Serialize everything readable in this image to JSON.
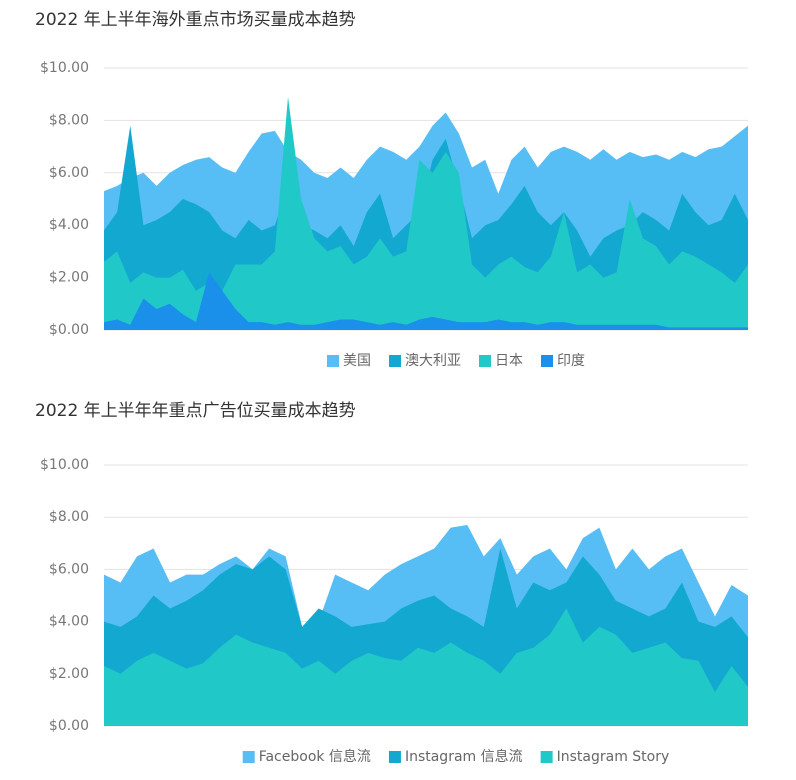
{
  "chart_data": [
    {
      "type": "area",
      "title": "2022 年上半年海外重点市场买量成本趋势",
      "ylim": [
        0,
        10
      ],
      "yticks": [
        {
          "value": 0,
          "label": "$0.00"
        },
        {
          "value": 2,
          "label": "$2.00"
        },
        {
          "value": 4,
          "label": "$4.00"
        },
        {
          "value": 6,
          "label": "$6.00"
        },
        {
          "value": 8,
          "label": "$8.00"
        },
        {
          "value": 10,
          "label": "$10.00"
        }
      ],
      "grid": true,
      "legend": "bottom",
      "series": [
        {
          "name": "美国",
          "color": "#57bef5",
          "values": [
            5.3,
            5.5,
            5.8,
            6.0,
            5.5,
            6.0,
            6.3,
            6.5,
            6.6,
            6.2,
            6.0,
            6.8,
            7.5,
            7.6,
            6.8,
            6.5,
            6.0,
            5.8,
            6.2,
            5.8,
            6.5,
            7.0,
            6.8,
            6.5,
            7.0,
            7.8,
            8.3,
            7.5,
            6.2,
            6.5,
            5.2,
            6.5,
            7.0,
            6.2,
            6.8,
            7.0,
            6.8,
            6.5,
            6.9,
            6.5,
            6.8,
            6.6,
            6.7,
            6.5,
            6.8,
            6.6,
            6.9,
            7.0,
            7.4,
            7.8
          ]
        },
        {
          "name": "澳大利亚",
          "color": "#12a8cf",
          "values": [
            3.8,
            4.5,
            7.8,
            4.0,
            4.2,
            4.5,
            5.0,
            4.8,
            4.5,
            3.8,
            3.5,
            4.2,
            3.8,
            4.0,
            5.5,
            4.0,
            3.8,
            3.5,
            4.0,
            3.2,
            4.5,
            5.2,
            3.5,
            4.0,
            4.5,
            6.5,
            7.3,
            5.5,
            3.5,
            4.0,
            4.2,
            4.8,
            5.5,
            4.5,
            4.0,
            4.5,
            3.8,
            2.8,
            3.5,
            3.8,
            4.0,
            4.5,
            4.2,
            3.8,
            5.2,
            4.5,
            4.0,
            4.2,
            5.2,
            4.2
          ]
        },
        {
          "name": "日本",
          "color": "#20c9c8",
          "values": [
            2.6,
            3.0,
            1.8,
            2.2,
            2.0,
            2.0,
            2.3,
            1.5,
            1.8,
            1.5,
            2.5,
            2.5,
            2.5,
            3.0,
            8.9,
            5.0,
            3.5,
            3.0,
            3.2,
            2.5,
            2.8,
            3.5,
            2.8,
            3.0,
            6.5,
            6.0,
            6.8,
            6.0,
            2.5,
            2.0,
            2.5,
            2.8,
            2.4,
            2.2,
            2.8,
            4.5,
            2.2,
            2.5,
            2.0,
            2.2,
            5.0,
            3.5,
            3.2,
            2.5,
            3.0,
            2.8,
            2.5,
            2.2,
            1.8,
            2.5
          ]
        },
        {
          "name": "印度",
          "color": "#1a90ea",
          "values": [
            0.3,
            0.4,
            0.2,
            1.2,
            0.8,
            1.0,
            0.6,
            0.3,
            2.2,
            1.5,
            0.8,
            0.3,
            0.3,
            0.2,
            0.3,
            0.2,
            0.2,
            0.3,
            0.4,
            0.4,
            0.3,
            0.2,
            0.3,
            0.2,
            0.4,
            0.5,
            0.4,
            0.3,
            0.3,
            0.3,
            0.4,
            0.3,
            0.3,
            0.2,
            0.3,
            0.3,
            0.2,
            0.2,
            0.2,
            0.2,
            0.2,
            0.2,
            0.2,
            0.1,
            0.1,
            0.1,
            0.1,
            0.1,
            0.1,
            0.1
          ]
        }
      ]
    },
    {
      "type": "area",
      "title": "2022 年上半年年重点广告位买量成本趋势",
      "ylim": [
        0,
        10
      ],
      "yticks": [
        {
          "value": 0,
          "label": "$0.00"
        },
        {
          "value": 2,
          "label": "$2.00"
        },
        {
          "value": 4,
          "label": "$4.00"
        },
        {
          "value": 6,
          "label": "$6.00"
        },
        {
          "value": 8,
          "label": "$8.00"
        },
        {
          "value": 10,
          "label": "$10.00"
        }
      ],
      "grid": true,
      "legend": "bottom",
      "series": [
        {
          "name": "Facebook 信息流",
          "color": "#57bef5",
          "values": [
            5.8,
            5.5,
            6.5,
            6.8,
            5.5,
            5.8,
            5.8,
            6.2,
            6.5,
            6.0,
            6.8,
            6.5,
            3.8,
            4.0,
            5.8,
            5.5,
            5.2,
            5.8,
            6.2,
            6.5,
            6.8,
            7.6,
            7.7,
            6.5,
            7.2,
            5.8,
            6.5,
            6.8,
            6.0,
            7.2,
            7.6,
            6.0,
            6.8,
            6.0,
            6.5,
            6.8,
            5.5,
            4.2,
            5.4,
            5.0
          ]
        },
        {
          "name": "Instagram 信息流",
          "color": "#12a8cf",
          "values": [
            4.0,
            3.8,
            4.2,
            5.0,
            4.5,
            4.8,
            5.2,
            5.8,
            6.2,
            6.0,
            6.5,
            6.0,
            3.8,
            4.5,
            4.2,
            3.8,
            3.9,
            4.0,
            4.5,
            4.8,
            5.0,
            4.5,
            4.2,
            3.8,
            6.8,
            4.5,
            5.5,
            5.2,
            5.5,
            6.5,
            5.8,
            4.8,
            4.5,
            4.2,
            4.5,
            5.5,
            4.0,
            3.8,
            4.2,
            3.4
          ]
        },
        {
          "name": "Instagram Story",
          "color": "#20c9c8",
          "values": [
            2.3,
            2.0,
            2.5,
            2.8,
            2.5,
            2.2,
            2.4,
            3.0,
            3.5,
            3.2,
            3.0,
            2.8,
            2.2,
            2.5,
            2.0,
            2.5,
            2.8,
            2.6,
            2.5,
            3.0,
            2.8,
            3.2,
            2.8,
            2.5,
            2.0,
            2.8,
            3.0,
            3.5,
            4.5,
            3.2,
            3.8,
            3.5,
            2.8,
            3.0,
            3.2,
            2.6,
            2.5,
            1.3,
            2.3,
            1.5
          ]
        }
      ]
    }
  ]
}
